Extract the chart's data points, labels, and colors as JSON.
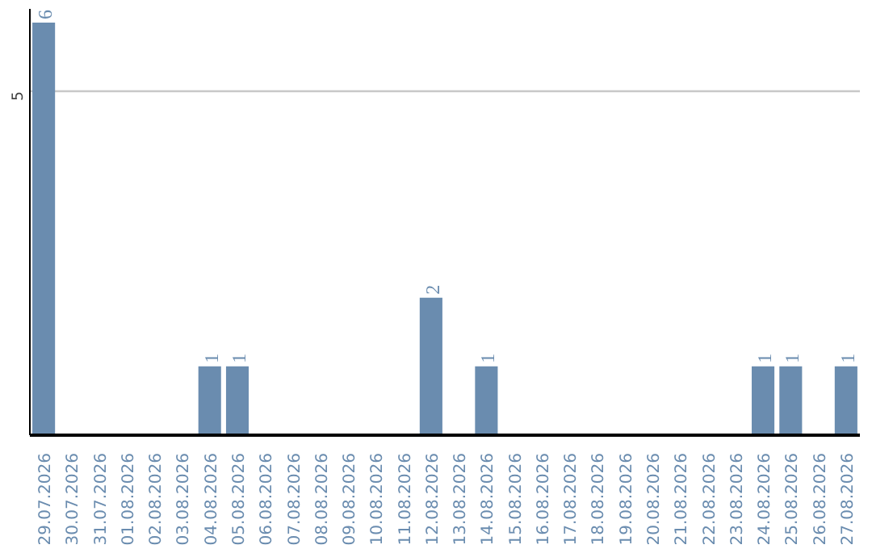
{
  "chart_data": {
    "type": "bar",
    "categories": [
      "29.07.2026",
      "30.07.2026",
      "31.07.2026",
      "01.08.2026",
      "02.08.2026",
      "03.08.2026",
      "04.08.2026",
      "05.08.2026",
      "06.08.2026",
      "07.08.2026",
      "08.08.2026",
      "09.08.2026",
      "10.08.2026",
      "11.08.2026",
      "12.08.2026",
      "13.08.2026",
      "14.08.2026",
      "15.08.2026",
      "16.08.2026",
      "17.08.2026",
      "18.08.2026",
      "19.08.2026",
      "20.08.2026",
      "21.08.2026",
      "22.08.2026",
      "23.08.2026",
      "24.08.2026",
      "25.08.2026",
      "26.08.2026",
      "27.08.2026"
    ],
    "values": [
      6,
      0,
      0,
      0,
      0,
      0,
      1,
      1,
      0,
      0,
      0,
      0,
      0,
      0,
      2,
      0,
      1,
      0,
      0,
      0,
      0,
      0,
      0,
      0,
      0,
      0,
      1,
      1,
      0,
      1
    ],
    "value_labels": [
      "6",
      null,
      null,
      null,
      null,
      null,
      "1",
      "1",
      null,
      null,
      null,
      null,
      null,
      null,
      "2",
      null,
      "1",
      null,
      null,
      null,
      null,
      null,
      null,
      null,
      null,
      null,
      "1",
      "1",
      null,
      "1"
    ],
    "color": "#6a8caf",
    "ylim": [
      0,
      6.2
    ],
    "yticks": [
      5
    ],
    "grid": "y"
  }
}
